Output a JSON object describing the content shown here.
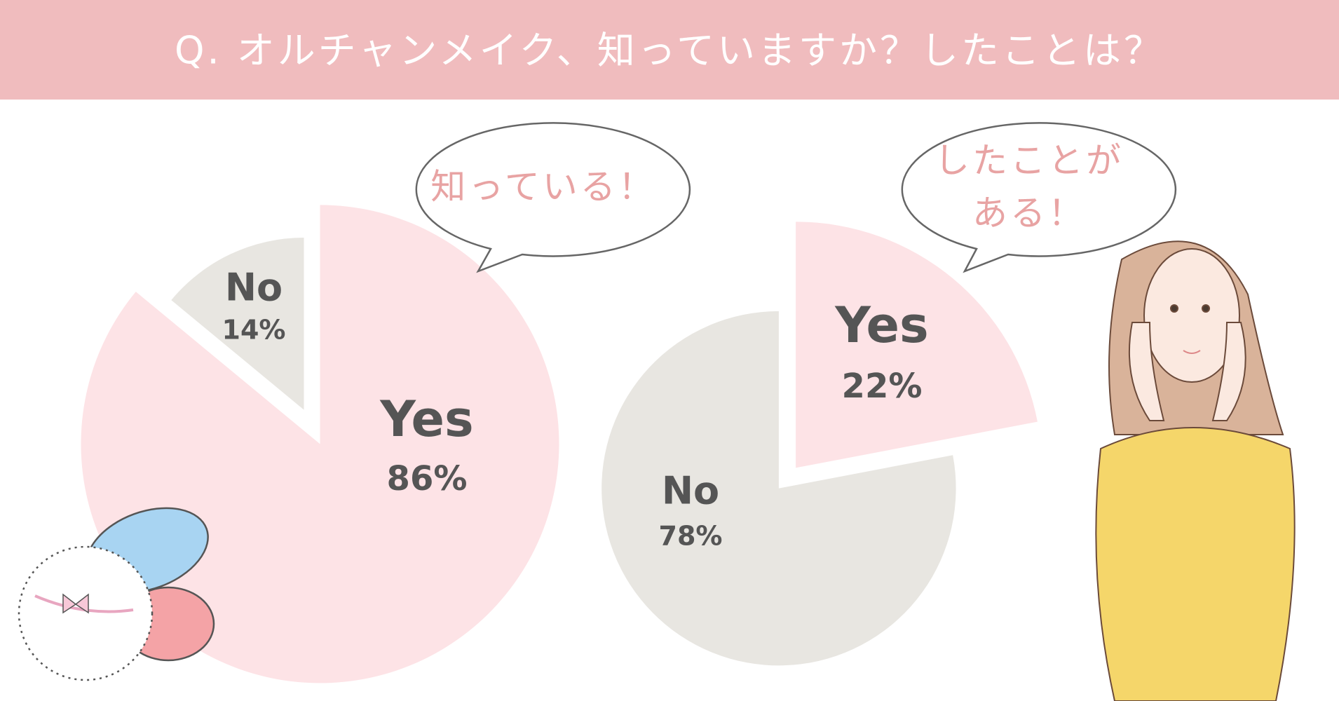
{
  "title": "Q. オルチャンメイク、知っていますか？したことは？",
  "chart_data": [
    {
      "type": "pie",
      "annotation": [
        "知っている！"
      ],
      "categories": [
        "Yes",
        "No"
      ],
      "values": [
        86,
        14
      ],
      "value_labels": [
        "86%",
        "14%"
      ],
      "colors": [
        "#fde3e6",
        "#e8e6e1"
      ]
    },
    {
      "type": "pie",
      "annotation": [
        "したことが",
        "ある！"
      ],
      "categories": [
        "Yes",
        "No"
      ],
      "values": [
        22,
        78
      ],
      "value_labels": [
        "22%",
        "78%"
      ],
      "colors": [
        "#fde3e6",
        "#e8e6e1"
      ]
    }
  ]
}
